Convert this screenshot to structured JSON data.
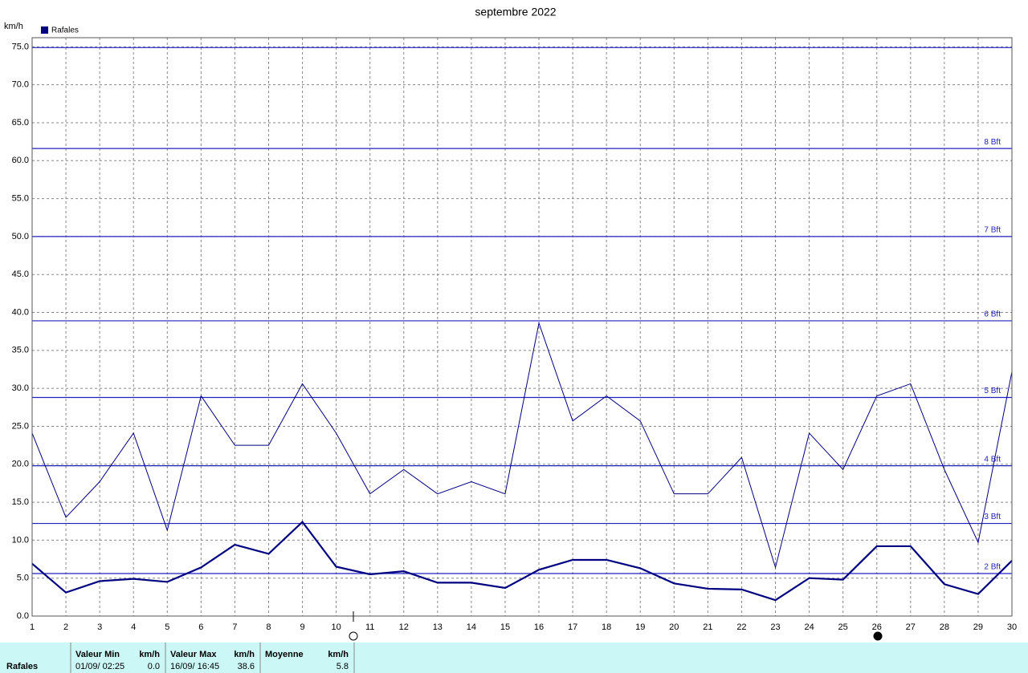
{
  "chart_data": {
    "type": "line",
    "title": "septembre 2022",
    "y_unit": "km/h",
    "x": [
      1,
      2,
      3,
      4,
      5,
      6,
      7,
      8,
      9,
      10,
      11,
      12,
      13,
      14,
      15,
      16,
      17,
      18,
      19,
      20,
      21,
      22,
      23,
      24,
      25,
      26,
      27,
      28,
      29,
      30
    ],
    "xlim": [
      1,
      30
    ],
    "xticks": [
      1,
      2,
      3,
      4,
      5,
      6,
      7,
      8,
      9,
      10,
      11,
      12,
      13,
      14,
      15,
      16,
      17,
      18,
      19,
      20,
      21,
      22,
      23,
      24,
      25,
      26,
      27,
      28,
      29,
      30
    ],
    "ylim": [
      0,
      76.2
    ],
    "yticks": [
      {
        "value": 0,
        "label": "0.0"
      },
      {
        "value": 5,
        "label": "5.0"
      },
      {
        "value": 10,
        "label": "10.0"
      },
      {
        "value": 15,
        "label": "15.0"
      },
      {
        "value": 20,
        "label": "20.0"
      },
      {
        "value": 25,
        "label": "25.0"
      },
      {
        "value": 30,
        "label": "30.0"
      },
      {
        "value": 35,
        "label": "35.0"
      },
      {
        "value": 40,
        "label": "40.0"
      },
      {
        "value": 45,
        "label": "45.0"
      },
      {
        "value": 50,
        "label": "50.0"
      },
      {
        "value": 55,
        "label": "55.0"
      },
      {
        "value": 60,
        "label": "60.0"
      },
      {
        "value": 65,
        "label": "65.0"
      },
      {
        "value": 70,
        "label": "70.0"
      },
      {
        "value": 75,
        "label": "75.0"
      }
    ],
    "grid": true,
    "series": [
      {
        "name": "Rafales",
        "color": "#000080",
        "values": [
          24.1,
          13,
          17.7,
          24.1,
          11.3,
          29,
          22.5,
          22.5,
          30.6,
          24.1,
          16.1,
          19.3,
          16.1,
          17.7,
          16.1,
          38.6,
          25.7,
          29,
          25.7,
          16.1,
          16.1,
          20.9,
          6.4,
          24.1,
          19.3,
          29,
          30.6,
          19.3,
          9.7,
          32.2
        ]
      },
      {
        "color": "#000080",
        "values": [
          6.9,
          3.1,
          4.6,
          4.9,
          4.5,
          6.4,
          9.4,
          8.2,
          12.4,
          6.5,
          5.5,
          5.9,
          4.4,
          4.4,
          3.7,
          6.1,
          7.4,
          7.4,
          6.3,
          4.3,
          3.6,
          3.5,
          2.1,
          5,
          4.8,
          9.2,
          9.2,
          4.2,
          2.9,
          7.3
        ]
      }
    ],
    "reference_lines": [
      {
        "value": 5.6,
        "label": "2 Bft"
      },
      {
        "value": 12.2,
        "label": "3 Bft"
      },
      {
        "value": 19.8,
        "label": "4 Bft"
      },
      {
        "value": 28.8,
        "label": "5 Bft"
      },
      {
        "value": 38.9,
        "label": "6 Bft"
      },
      {
        "value": 50,
        "label": "7 Bft"
      },
      {
        "value": 61.6,
        "label": "8 Bft"
      },
      {
        "value": 74.9
      }
    ],
    "reference_color": "#2020c0"
  },
  "table": {
    "row_label": "Rafales",
    "columns": [
      {
        "header": "Valeur Min",
        "unit": "km/h",
        "date": "01/09/ 02:25",
        "value": "0.0"
      },
      {
        "header": "Valeur Max",
        "unit": "km/h",
        "date": "16/09/ 16:45",
        "value": "38.6"
      },
      {
        "header": "Moyenne",
        "unit": "km/h",
        "value": "5.8"
      }
    ]
  }
}
